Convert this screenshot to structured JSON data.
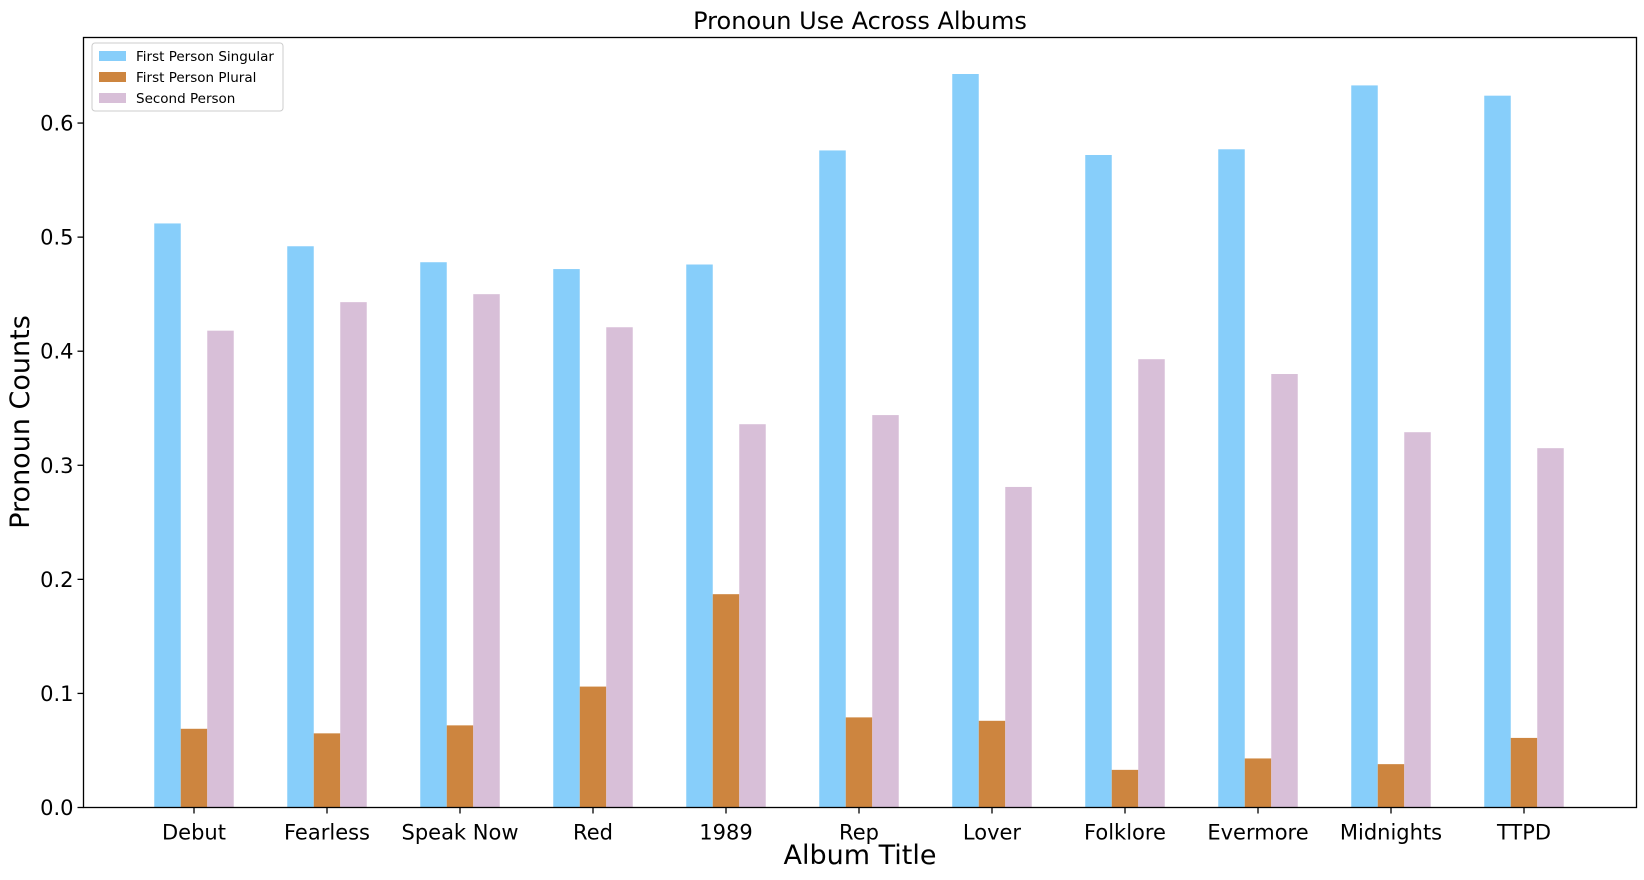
{
  "chart_data": {
    "type": "bar",
    "title": "Pronoun Use Across Albums",
    "xlabel": "Album Title",
    "ylabel": "Pronoun Counts",
    "categories": [
      "Debut",
      "Fearless",
      "Speak Now",
      "Red",
      "1989",
      "Rep",
      "Lover",
      "Folklore",
      "Evermore",
      "Midnights",
      "TTPD"
    ],
    "series": [
      {
        "name": "First Person Singular",
        "color": "#87CEFA",
        "values": [
          0.512,
          0.492,
          0.478,
          0.472,
          0.476,
          0.576,
          0.643,
          0.572,
          0.577,
          0.633,
          0.624
        ]
      },
      {
        "name": "First Person Plural",
        "color": "#CD853F",
        "values": [
          0.069,
          0.065,
          0.072,
          0.106,
          0.187,
          0.079,
          0.076,
          0.033,
          0.043,
          0.038,
          0.061
        ]
      },
      {
        "name": "Second Person",
        "color": "#D8BFD8",
        "values": [
          0.418,
          0.443,
          0.45,
          0.421,
          0.336,
          0.344,
          0.281,
          0.393,
          0.38,
          0.329,
          0.315
        ]
      }
    ],
    "ylim": [
      0.0,
      0.675
    ],
    "yticks": [
      "0.0",
      "0.1",
      "0.2",
      "0.3",
      "0.4",
      "0.5",
      "0.6"
    ],
    "grid": false,
    "legend_position": "top-left"
  }
}
